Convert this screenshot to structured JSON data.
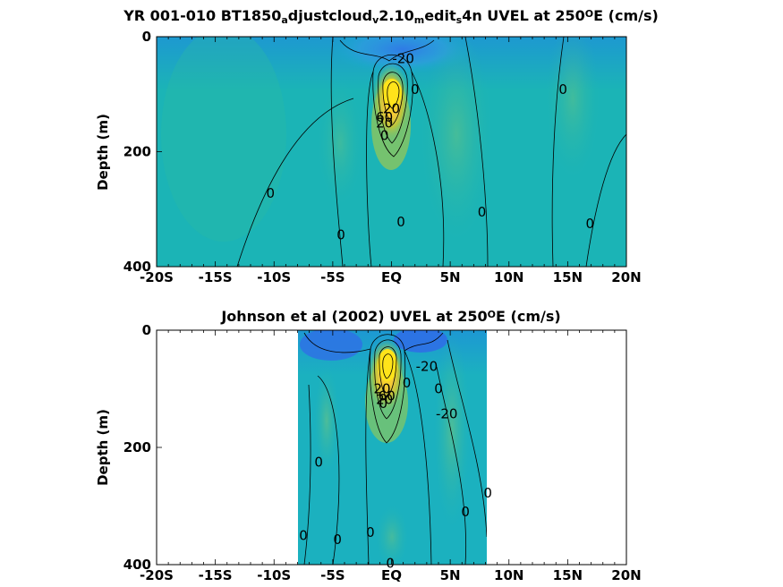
{
  "chart_data": [
    {
      "type": "heatmap",
      "title_parts": {
        "lead": "YR 001-010 BT1850",
        "sub_a": "a",
        "mid1": "djustcloud",
        "sub_v": "v",
        "mid2": "2.10",
        "sub_m": "m",
        "mid3": "edit",
        "sub_s": "s",
        "tail": "4n UVEL at 250",
        "sup": "O",
        "end": "E (cm/s)"
      },
      "ylabel": "Depth (m)",
      "xlim": [
        -20,
        20
      ],
      "ylim": [
        0,
        400
      ],
      "y_reversed": true,
      "x_tick_labels": [
        "-20S",
        "-15S",
        "-10S",
        "-5S",
        "EQ",
        "5N",
        "10N",
        "15N",
        "20N"
      ],
      "x_ticks": [
        -20,
        -15,
        -10,
        -5,
        0,
        5,
        10,
        15,
        20
      ],
      "y_tick_labels": [
        "0",
        "200",
        "400"
      ],
      "y_ticks": [
        0,
        200,
        400
      ],
      "data_extent_lon": [
        -20,
        20
      ],
      "contour_labels": [
        {
          "text": "-20",
          "lon": 1.0,
          "depth": 38
        },
        {
          "text": "0",
          "lon": 2.0,
          "depth": 92
        },
        {
          "text": "20",
          "lon": 0.0,
          "depth": 125
        },
        {
          "text": "60",
          "lon": -0.6,
          "depth": 140
        },
        {
          "text": "20",
          "lon": -0.6,
          "depth": 150
        },
        {
          "text": "0",
          "lon": -0.6,
          "depth": 172
        },
        {
          "text": "0",
          "lon": 14.6,
          "depth": 92
        },
        {
          "text": "0",
          "lon": -10.3,
          "depth": 272
        },
        {
          "text": "0",
          "lon": -4.3,
          "depth": 345
        },
        {
          "text": "0",
          "lon": 0.8,
          "depth": 322
        },
        {
          "text": "0",
          "lon": 7.7,
          "depth": 305
        },
        {
          "text": "0",
          "lon": 16.9,
          "depth": 325
        }
      ]
    },
    {
      "type": "heatmap",
      "title_parts": {
        "lead": "Johnson et al (2002) UVEL at 250",
        "sup": "O",
        "end": "E (cm/s)"
      },
      "ylabel": "Depth (m)",
      "xlim": [
        -20,
        20
      ],
      "ylim": [
        0,
        400
      ],
      "y_reversed": true,
      "x_tick_labels": [
        "-20S",
        "-15S",
        "-10S",
        "-5S",
        "EQ",
        "5N",
        "10N",
        "15N",
        "20N"
      ],
      "x_ticks": [
        -20,
        -15,
        -10,
        -5,
        0,
        5,
        10,
        15,
        20
      ],
      "y_tick_labels": [
        "0",
        "200",
        "400"
      ],
      "y_ticks": [
        0,
        200,
        400
      ],
      "data_extent_lon": [
        -8,
        8
      ],
      "contour_labels": [
        {
          "text": "-20",
          "lon": 3.0,
          "depth": 62
        },
        {
          "text": "-20",
          "lon": 4.7,
          "depth": 143
        },
        {
          "text": "0",
          "lon": 4.0,
          "depth": 100
        },
        {
          "text": "0",
          "lon": 1.3,
          "depth": 90
        },
        {
          "text": "20",
          "lon": -0.8,
          "depth": 100
        },
        {
          "text": "60",
          "lon": -0.4,
          "depth": 112
        },
        {
          "text": "20",
          "lon": -0.6,
          "depth": 118
        },
        {
          "text": "0",
          "lon": -0.7,
          "depth": 125
        },
        {
          "text": "0",
          "lon": -6.2,
          "depth": 225
        },
        {
          "text": "0",
          "lon": -7.5,
          "depth": 350
        },
        {
          "text": "0",
          "lon": -4.6,
          "depth": 357
        },
        {
          "text": "0",
          "lon": -1.8,
          "depth": 345
        },
        {
          "text": "0",
          "lon": -0.1,
          "depth": 398
        },
        {
          "text": "0",
          "lon": 6.3,
          "depth": 310
        },
        {
          "text": "0",
          "lon": 8.2,
          "depth": 278
        }
      ]
    }
  ]
}
